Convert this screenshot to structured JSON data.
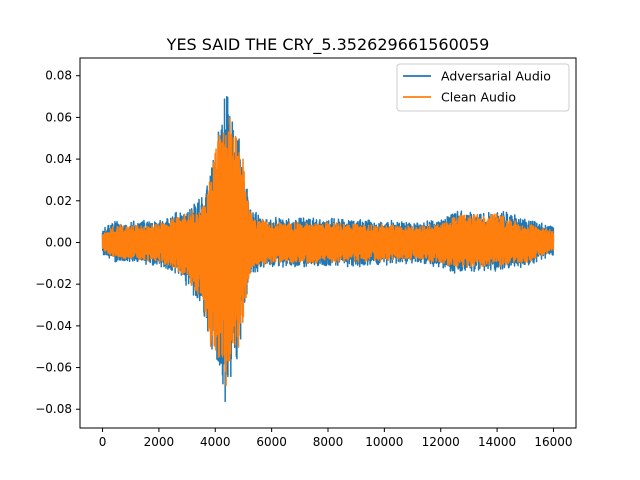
{
  "chart_data": {
    "type": "line",
    "title": "YES SAID THE CRY_5.352629661560059",
    "xlabel": "",
    "ylabel": "",
    "xlim": [
      -800,
      16800
    ],
    "ylim": [
      -0.089,
      0.0885
    ],
    "xticks": [
      0,
      2000,
      4000,
      6000,
      8000,
      10000,
      12000,
      14000,
      16000
    ],
    "yticks": [
      -0.08,
      -0.06,
      -0.04,
      -0.02,
      0.0,
      0.02,
      0.04,
      0.06,
      0.08
    ],
    "xtick_labels": [
      "0",
      "2000",
      "4000",
      "6000",
      "8000",
      "10000",
      "12000",
      "14000",
      "16000"
    ],
    "ytick_labels": [
      "−0.08",
      "−0.06",
      "−0.04",
      "−0.02",
      "0.00",
      "0.02",
      "0.04",
      "0.06",
      "0.08"
    ],
    "grid": false,
    "legend_position": "top-right",
    "sample_count": 16000,
    "series": [
      {
        "name": "Adversarial Audio",
        "color": "#1f77b4",
        "envelope": {
          "x": [
            0,
            500,
            1000,
            1500,
            2000,
            2500,
            3000,
            3500,
            3800,
            4000,
            4200,
            4400,
            4600,
            4800,
            5000,
            5200,
            5500,
            6000,
            7000,
            8000,
            9000,
            10000,
            11000,
            12000,
            12500,
            13000,
            14000,
            15000,
            16000
          ],
          "max": [
            0.007,
            0.011,
            0.01,
            0.011,
            0.011,
            0.014,
            0.016,
            0.022,
            0.032,
            0.052,
            0.06,
            0.078,
            0.06,
            0.055,
            0.042,
            0.018,
            0.014,
            0.012,
            0.012,
            0.012,
            0.011,
            0.011,
            0.01,
            0.011,
            0.015,
            0.016,
            0.016,
            0.012,
            0.008
          ],
          "min": [
            -0.006,
            -0.01,
            -0.01,
            -0.011,
            -0.012,
            -0.015,
            -0.022,
            -0.03,
            -0.052,
            -0.058,
            -0.065,
            -0.081,
            -0.062,
            -0.055,
            -0.042,
            -0.018,
            -0.014,
            -0.012,
            -0.012,
            -0.012,
            -0.012,
            -0.011,
            -0.01,
            -0.012,
            -0.015,
            -0.014,
            -0.014,
            -0.012,
            -0.006
          ]
        }
      },
      {
        "name": "Clean Audio",
        "color": "#ff7f0e",
        "envelope": {
          "x": [
            0,
            500,
            1000,
            1500,
            2000,
            2500,
            3000,
            3500,
            3800,
            4000,
            4200,
            4400,
            4600,
            4800,
            5000,
            5200,
            5500,
            6000,
            7000,
            8000,
            9000,
            10000,
            11000,
            12000,
            12500,
            13000,
            14000,
            15000,
            16000
          ],
          "max": [
            0.005,
            0.009,
            0.008,
            0.009,
            0.009,
            0.012,
            0.014,
            0.019,
            0.03,
            0.05,
            0.056,
            0.072,
            0.057,
            0.052,
            0.04,
            0.016,
            0.012,
            0.01,
            0.01,
            0.01,
            0.009,
            0.009,
            0.008,
            0.009,
            0.013,
            0.014,
            0.014,
            0.01,
            0.006
          ],
          "min": [
            -0.004,
            -0.008,
            -0.008,
            -0.009,
            -0.01,
            -0.013,
            -0.02,
            -0.028,
            -0.05,
            -0.055,
            -0.061,
            -0.07,
            -0.058,
            -0.052,
            -0.04,
            -0.016,
            -0.012,
            -0.01,
            -0.01,
            -0.01,
            -0.01,
            -0.009,
            -0.008,
            -0.01,
            -0.013,
            -0.012,
            -0.012,
            -0.01,
            -0.004
          ]
        }
      }
    ]
  }
}
